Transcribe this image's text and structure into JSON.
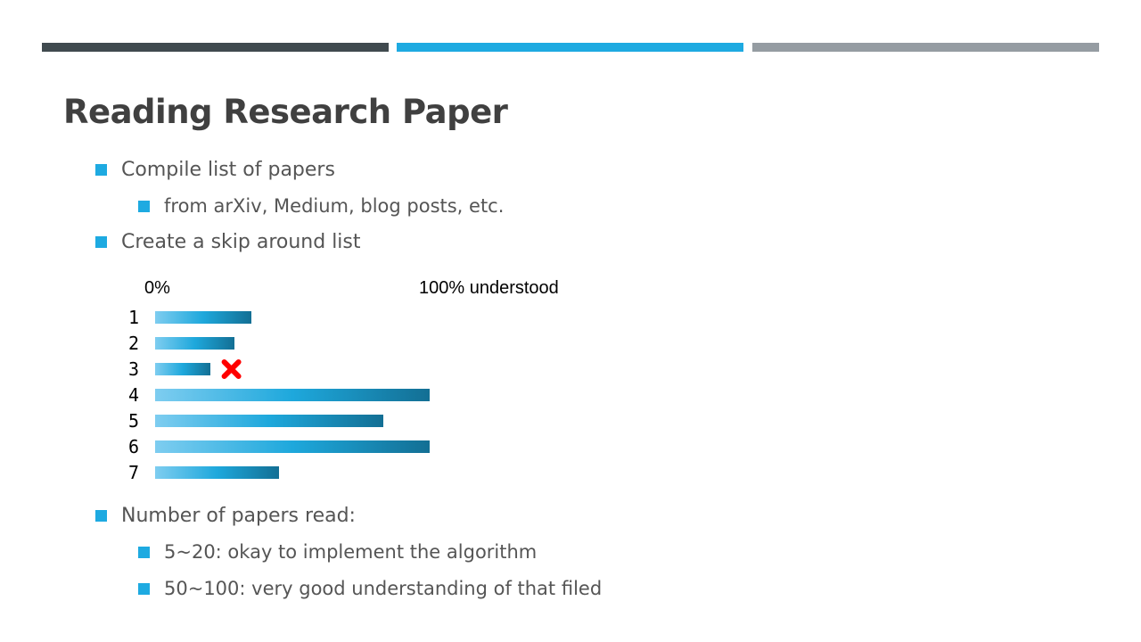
{
  "slide": {
    "title": "Reading Research Paper",
    "colors": {
      "title": "#404040",
      "text": "#555555",
      "bullet": "#1eaae1",
      "bar_light": "#7ecdf0",
      "bar_mid": "#1ea8dc",
      "bar_dark": "#136f94",
      "cross": "#ff0000"
    },
    "top_bars": [
      {
        "name": "dark-segment",
        "color": "#404a4f"
      },
      {
        "name": "blue-segment",
        "color": "#1eaae1"
      },
      {
        "name": "gray-segment",
        "color": "#959ca2"
      }
    ],
    "bullets": [
      {
        "text": "Compile list of papers",
        "level": 1
      },
      {
        "text": "from arXiv, Medium, blog posts, etc.",
        "level": 2
      },
      {
        "text": "Create a skip around list",
        "level": 1
      },
      {
        "text": "Number of papers read:",
        "level": 1
      },
      {
        "text": "5~20: okay to implement the algorithm",
        "level": 2
      },
      {
        "text": "50~100: very good understanding of that filed",
        "level": 2
      }
    ]
  },
  "chart_data": {
    "type": "bar",
    "orientation": "horizontal",
    "axis_start_label": "0%",
    "axis_end_label": "100% understood",
    "xlim": [
      0,
      100
    ],
    "categories": [
      "1",
      "2",
      "3",
      "4",
      "5",
      "6",
      "7"
    ],
    "values": [
      35,
      29,
      20,
      100,
      83,
      100,
      45
    ],
    "annotations": [
      {
        "category": "3",
        "symbol": "cross",
        "meaning": "skipped"
      }
    ]
  }
}
